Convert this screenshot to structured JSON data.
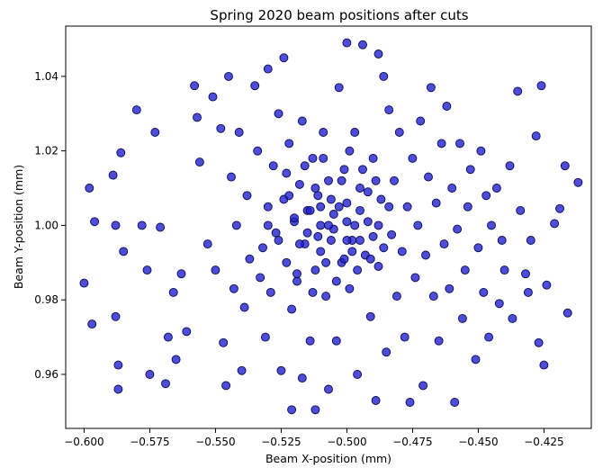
{
  "chart_data": {
    "type": "scatter",
    "title": "Spring 2020 beam positions after cuts",
    "xlabel": "Beam X-position (mm)",
    "ylabel": "Beam Y-position (mm)",
    "xlim": [
      -0.607,
      -0.407
    ],
    "ylim": [
      0.9455,
      1.0535
    ],
    "xticks": [
      -0.6,
      -0.575,
      -0.55,
      -0.525,
      -0.5,
      -0.475,
      -0.45,
      -0.425
    ],
    "xtick_labels": [
      "−0.600",
      "−0.575",
      "−0.550",
      "−0.525",
      "−0.500",
      "−0.475",
      "−0.450",
      "−0.425"
    ],
    "yticks": [
      0.96,
      0.98,
      1.0,
      1.02,
      1.04
    ],
    "ytick_labels": [
      "0.96",
      "0.98",
      "1.00",
      "1.02",
      "1.04"
    ],
    "marker_color": "#2020d0",
    "marker_edge_color": "#0a0a50",
    "grid": false,
    "points": [
      [
        -0.6,
        0.9845
      ],
      [
        -0.598,
        1.01
      ],
      [
        -0.597,
        0.9735
      ],
      [
        -0.596,
        1.001
      ],
      [
        -0.589,
        1.0135
      ],
      [
        -0.588,
        1.0
      ],
      [
        -0.588,
        0.9755
      ],
      [
        -0.587,
        0.9625
      ],
      [
        -0.587,
        0.956
      ],
      [
        -0.586,
        1.0195
      ],
      [
        -0.585,
        0.993
      ],
      [
        -0.58,
        1.031
      ],
      [
        -0.578,
        1.0
      ],
      [
        -0.576,
        0.988
      ],
      [
        -0.575,
        0.96
      ],
      [
        -0.573,
        1.025
      ],
      [
        -0.571,
        0.9995
      ],
      [
        -0.569,
        0.9575
      ],
      [
        -0.568,
        0.97
      ],
      [
        -0.566,
        0.982
      ],
      [
        -0.565,
        0.964
      ],
      [
        -0.563,
        0.987
      ],
      [
        -0.561,
        0.9715
      ],
      [
        -0.558,
        1.0375
      ],
      [
        -0.557,
        1.029
      ],
      [
        -0.556,
        1.017
      ],
      [
        -0.553,
        0.995
      ],
      [
        -0.551,
        1.0345
      ],
      [
        -0.55,
        0.988
      ],
      [
        -0.548,
        1.026
      ],
      [
        -0.547,
        0.9685
      ],
      [
        -0.546,
        0.957
      ],
      [
        -0.545,
        1.04
      ],
      [
        -0.544,
        1.013
      ],
      [
        -0.543,
        0.983
      ],
      [
        -0.542,
        1.0
      ],
      [
        -0.541,
        1.025
      ],
      [
        -0.54,
        0.961
      ],
      [
        -0.539,
        0.978
      ],
      [
        -0.538,
        1.008
      ],
      [
        -0.537,
        0.991
      ],
      [
        -0.535,
        1.0375
      ],
      [
        -0.534,
        1.02
      ],
      [
        -0.533,
        0.986
      ],
      [
        -0.532,
        0.994
      ],
      [
        -0.531,
        0.97
      ],
      [
        -0.53,
        1.005
      ],
      [
        -0.53,
        1.042
      ],
      [
        -0.529,
        0.982
      ],
      [
        -0.528,
        1.016
      ],
      [
        -0.527,
        0.998
      ],
      [
        -0.526,
        1.03
      ],
      [
        -0.525,
        0.961
      ],
      [
        -0.524,
        1.007
      ],
      [
        -0.524,
        1.045
      ],
      [
        -0.523,
        0.99
      ],
      [
        -0.522,
        1.022
      ],
      [
        -0.521,
        0.9775
      ],
      [
        -0.521,
        0.9505
      ],
      [
        -0.52,
        1.001
      ],
      [
        -0.519,
        0.985
      ],
      [
        -0.518,
        1.011
      ],
      [
        -0.517,
        0.959
      ],
      [
        -0.517,
        1.028
      ],
      [
        -0.516,
        0.995
      ],
      [
        -0.515,
        1.004
      ],
      [
        -0.514,
        0.969
      ],
      [
        -0.513,
        1.018
      ],
      [
        -0.512,
        0.9505
      ],
      [
        -0.512,
        0.988
      ],
      [
        -0.511,
        1.008
      ],
      [
        -0.51,
        1.0
      ],
      [
        -0.509,
        1.025
      ],
      [
        -0.508,
        0.981
      ],
      [
        -0.507,
        0.956
      ],
      [
        -0.507,
        1.012
      ],
      [
        -0.506,
        0.996
      ],
      [
        -0.505,
        1.003
      ],
      [
        -0.504,
        0.969
      ],
      [
        -0.503,
        1.037
      ],
      [
        -0.502,
        0.99
      ],
      [
        -0.501,
        1.015
      ],
      [
        -0.5,
        1.049
      ],
      [
        -0.5,
        1.006
      ],
      [
        -0.499,
        0.983
      ],
      [
        -0.498,
        0.996
      ],
      [
        -0.497,
        1.025
      ],
      [
        -0.496,
        0.96
      ],
      [
        -0.495,
        1.01
      ],
      [
        -0.494,
        1.0485
      ],
      [
        -0.493,
        0.992
      ],
      [
        -0.492,
        1.001
      ],
      [
        -0.491,
        0.9755
      ],
      [
        -0.49,
        1.018
      ],
      [
        -0.489,
        0.953
      ],
      [
        -0.488,
        1.046
      ],
      [
        -0.488,
        0.989
      ],
      [
        -0.487,
        1.007
      ],
      [
        -0.486,
        1.04
      ],
      [
        -0.485,
        0.966
      ],
      [
        -0.484,
        1.031
      ],
      [
        -0.483,
        0.9975
      ],
      [
        -0.482,
        1.012
      ],
      [
        -0.481,
        0.981
      ],
      [
        -0.48,
        1.025
      ],
      [
        -0.479,
        0.993
      ],
      [
        -0.478,
        0.97
      ],
      [
        -0.477,
        1.005
      ],
      [
        -0.476,
        0.9525
      ],
      [
        -0.475,
        1.018
      ],
      [
        -0.474,
        0.986
      ],
      [
        -0.473,
        1.0
      ],
      [
        -0.472,
        1.028
      ],
      [
        -0.471,
        0.957
      ],
      [
        -0.47,
        0.992
      ],
      [
        -0.469,
        1.013
      ],
      [
        -0.468,
        1.037
      ],
      [
        -0.467,
        0.981
      ],
      [
        -0.466,
        1.006
      ],
      [
        -0.465,
        0.969
      ],
      [
        -0.464,
        1.022
      ],
      [
        -0.463,
        0.995
      ],
      [
        -0.462,
        1.032
      ],
      [
        -0.461,
        0.983
      ],
      [
        -0.46,
        1.01
      ],
      [
        -0.459,
        0.9525
      ],
      [
        -0.458,
        0.999
      ],
      [
        -0.457,
        1.022
      ],
      [
        -0.456,
        0.975
      ],
      [
        -0.455,
        0.988
      ],
      [
        -0.454,
        1.005
      ],
      [
        -0.453,
        1.015
      ],
      [
        -0.451,
        0.964
      ],
      [
        -0.45,
        0.994
      ],
      [
        -0.449,
        1.02
      ],
      [
        -0.448,
        0.982
      ],
      [
        -0.447,
        1.008
      ],
      [
        -0.446,
        0.97
      ],
      [
        -0.445,
        1.0
      ],
      [
        -0.443,
        1.01
      ],
      [
        -0.442,
        0.979
      ],
      [
        -0.441,
        0.996
      ],
      [
        -0.44,
        0.988
      ],
      [
        -0.438,
        1.016
      ],
      [
        -0.437,
        0.975
      ],
      [
        -0.435,
        1.036
      ],
      [
        -0.434,
        1.004
      ],
      [
        -0.432,
        0.987
      ],
      [
        -0.431,
        0.982
      ],
      [
        -0.43,
        0.996
      ],
      [
        -0.428,
        1.024
      ],
      [
        -0.427,
        0.9685
      ],
      [
        -0.426,
        1.0375
      ],
      [
        -0.425,
        0.9625
      ],
      [
        -0.424,
        0.984
      ],
      [
        -0.421,
        1.0005
      ],
      [
        -0.419,
        1.0045
      ],
      [
        -0.417,
        1.016
      ],
      [
        -0.416,
        0.9765
      ],
      [
        -0.412,
        1.0115
      ],
      [
        -0.52,
        1.002
      ],
      [
        -0.515,
        0.998
      ],
      [
        -0.51,
        1.005
      ],
      [
        -0.505,
        0.999
      ],
      [
        -0.5,
        1.001
      ],
      [
        -0.495,
        1.004
      ],
      [
        -0.49,
        0.997
      ],
      [
        -0.512,
        1.01
      ],
      [
        -0.498,
        0.993
      ],
      [
        -0.508,
        0.99
      ],
      [
        -0.502,
        1.012
      ],
      [
        -0.518,
        0.995
      ],
      [
        -0.492,
        1.009
      ],
      [
        -0.506,
        1.007
      ],
      [
        -0.496,
        0.988
      ],
      [
        -0.514,
        1.004
      ],
      [
        -0.488,
        1.0
      ],
      [
        -0.522,
        1.008
      ],
      [
        -0.504,
        0.985
      ],
      [
        -0.51,
        0.993
      ],
      [
        -0.5,
        0.996
      ],
      [
        -0.494,
        1.015
      ],
      [
        -0.516,
        1.016
      ],
      [
        -0.486,
        0.994
      ],
      [
        -0.526,
        0.996
      ],
      [
        -0.509,
        1.018
      ],
      [
        -0.497,
        1.0
      ],
      [
        -0.503,
        1.005
      ],
      [
        -0.511,
        0.997
      ],
      [
        -0.491,
        0.991
      ],
      [
        -0.484,
        1.005
      ],
      [
        -0.53,
        1.0
      ],
      [
        -0.519,
        0.987
      ],
      [
        -0.507,
        1.0
      ],
      [
        -0.499,
        1.02
      ],
      [
        -0.513,
        0.982
      ],
      [
        -0.489,
        1.012
      ],
      [
        -0.523,
        1.014
      ],
      [
        -0.501,
        0.991
      ],
      [
        -0.495,
        0.996
      ]
    ]
  }
}
